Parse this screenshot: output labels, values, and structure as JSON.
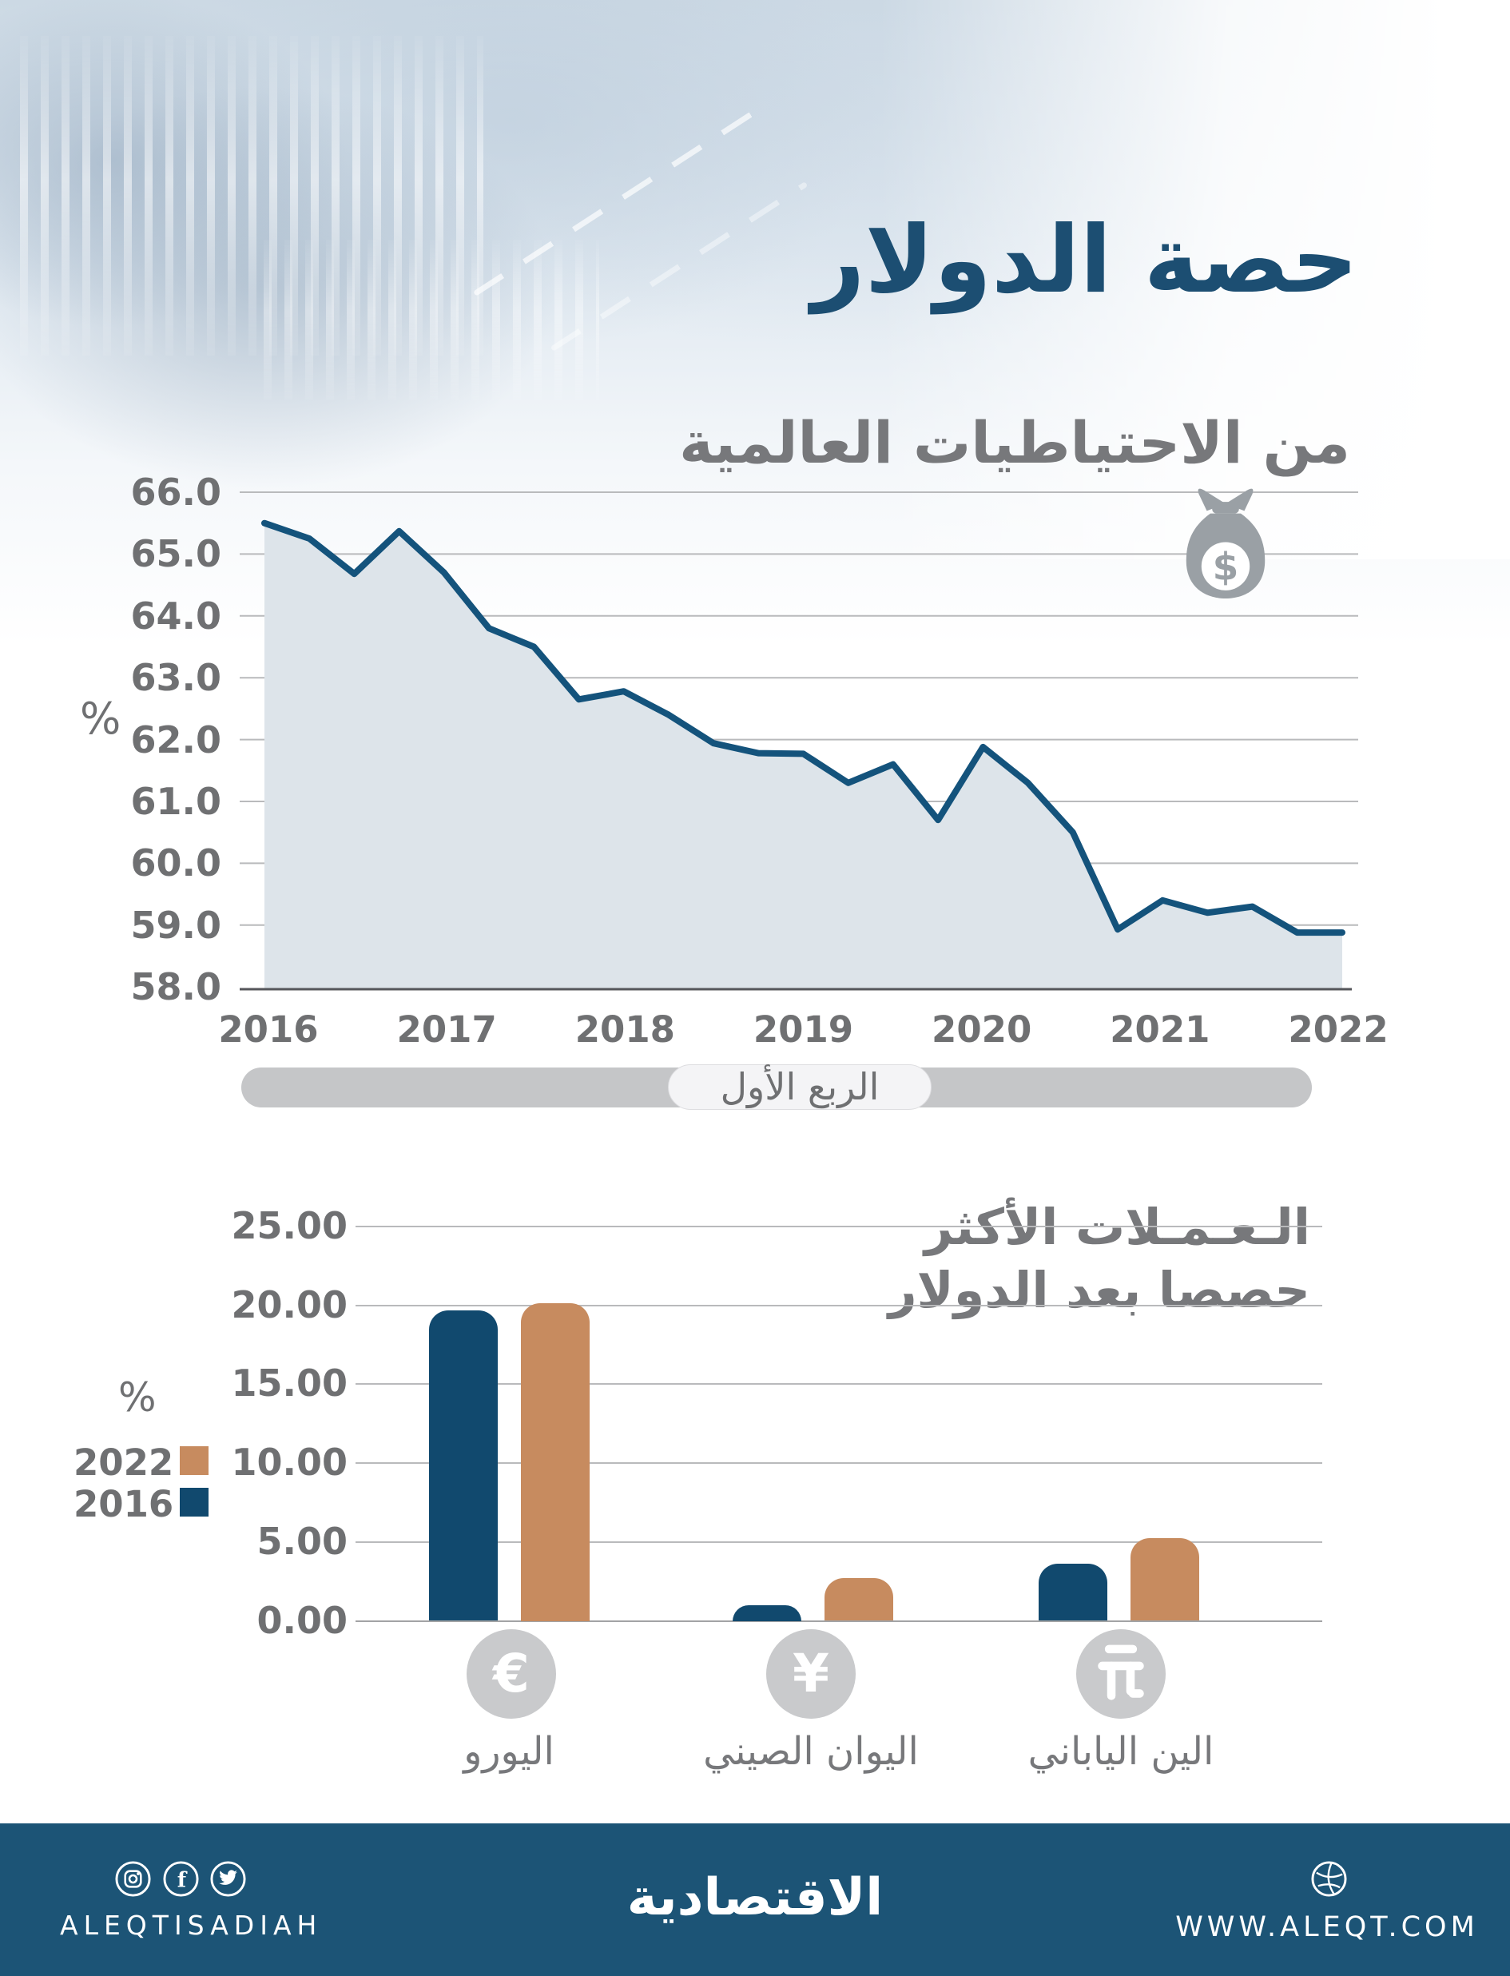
{
  "header": {
    "title": "حصة الدولار",
    "subtitle": "من الاحتياطيات العالمية"
  },
  "chart_data": [
    {
      "type": "area",
      "title": "حصة الدولار من الاحتياطيات العالمية",
      "ylabel": "%",
      "xlabel": "",
      "frequency": "quarterly",
      "x_tick_labels": [
        "2016",
        "2017",
        "2018",
        "2019",
        "2020",
        "2021",
        "2022"
      ],
      "y_tick_labels": [
        "66.0",
        "65.0",
        "64.0",
        "63.0",
        "62.0",
        "61.0",
        "60.0",
        "59.0",
        "58.0"
      ],
      "y_tick_values": [
        66,
        65,
        64,
        63,
        62,
        61,
        60,
        59,
        58
      ],
      "ylim": [
        58,
        66
      ],
      "values": [
        65.5,
        65.25,
        64.68,
        65.37,
        64.7,
        63.8,
        63.5,
        62.65,
        62.78,
        62.4,
        61.94,
        61.78,
        61.77,
        61.3,
        61.6,
        60.7,
        61.88,
        61.3,
        60.5,
        58.93,
        59.4,
        59.2,
        59.3,
        58.88,
        58.88
      ],
      "annotation": "الربع الأول",
      "grid": true,
      "line_color": "#14537c",
      "fill_color": "#dde4ea",
      "icon": "money-bag-icon"
    },
    {
      "type": "bar",
      "title": "الـعـمـلات الأكثر حصصا بعد الدولار",
      "title_lines": [
        "الـعـمـلات الأكثر",
        "حصصا بعد الدولار"
      ],
      "ylabel": "%",
      "categories": [
        "اليورو",
        "اليوان الصيني",
        "الين الياباني"
      ],
      "category_icons": [
        "euro-icon",
        "yuan-icon",
        "yen-icon"
      ],
      "series": [
        {
          "name": "2016",
          "color": "#11496e",
          "values": [
            19.6,
            1.0,
            3.6
          ]
        },
        {
          "name": "2022",
          "color": "#c78b5f",
          "values": [
            20.1,
            2.7,
            5.2
          ]
        }
      ],
      "y_tick_labels": [
        "25.00",
        "20.00",
        "15.00",
        "10.00",
        "5.00",
        "0.00"
      ],
      "y_tick_values": [
        25,
        20,
        15,
        10,
        5,
        0
      ],
      "ylim": [
        0,
        25
      ],
      "legend_position": "left",
      "grid": true
    }
  ],
  "colors": {
    "accent_navy": "#1c4e72",
    "gray_text": "#77787b",
    "grid_gray": "#b9babc",
    "icon_gray": "#9aa0a5",
    "circle_gray": "#c9cacc",
    "footer_bg": "#1c5476",
    "slider_track": "#c5c6c8",
    "slider_pill": "#f4f4f6"
  },
  "footer": {
    "brand_latin": "ALEQTISADIAH",
    "brand_arabic": "الاقتصادية",
    "website": "WWW.ALEQT.COM",
    "social_icons": [
      "instagram-icon",
      "facebook-icon",
      "twitter-icon"
    ],
    "globe_icon": "globe-icon"
  }
}
